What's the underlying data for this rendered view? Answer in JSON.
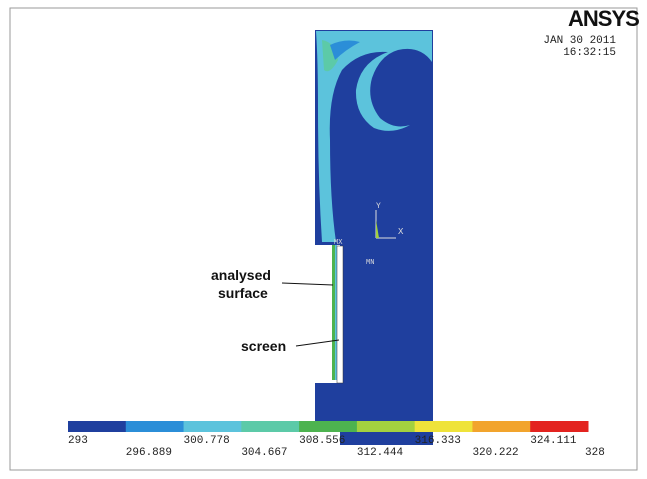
{
  "header": {
    "logo": "ANSYS",
    "date": "JAN 30 2011",
    "time": "16:32:15"
  },
  "annotations": {
    "analysed_surface": [
      "analysed",
      "surface"
    ],
    "screen": "screen"
  },
  "markers": {
    "max": "MX",
    "min": "MN",
    "axis_y": "Y",
    "axis_x": "X"
  },
  "legend": {
    "colors": [
      "#1f3f9e",
      "#2b8ed8",
      "#5cc3dc",
      "#5ccaa8",
      "#4db34f",
      "#a3d13f",
      "#efe33a",
      "#f2a42d",
      "#e3231f"
    ],
    "levels": [
      293,
      296.889,
      300.778,
      304.667,
      308.556,
      312.444,
      316.333,
      320.222,
      324.111,
      328
    ]
  }
}
